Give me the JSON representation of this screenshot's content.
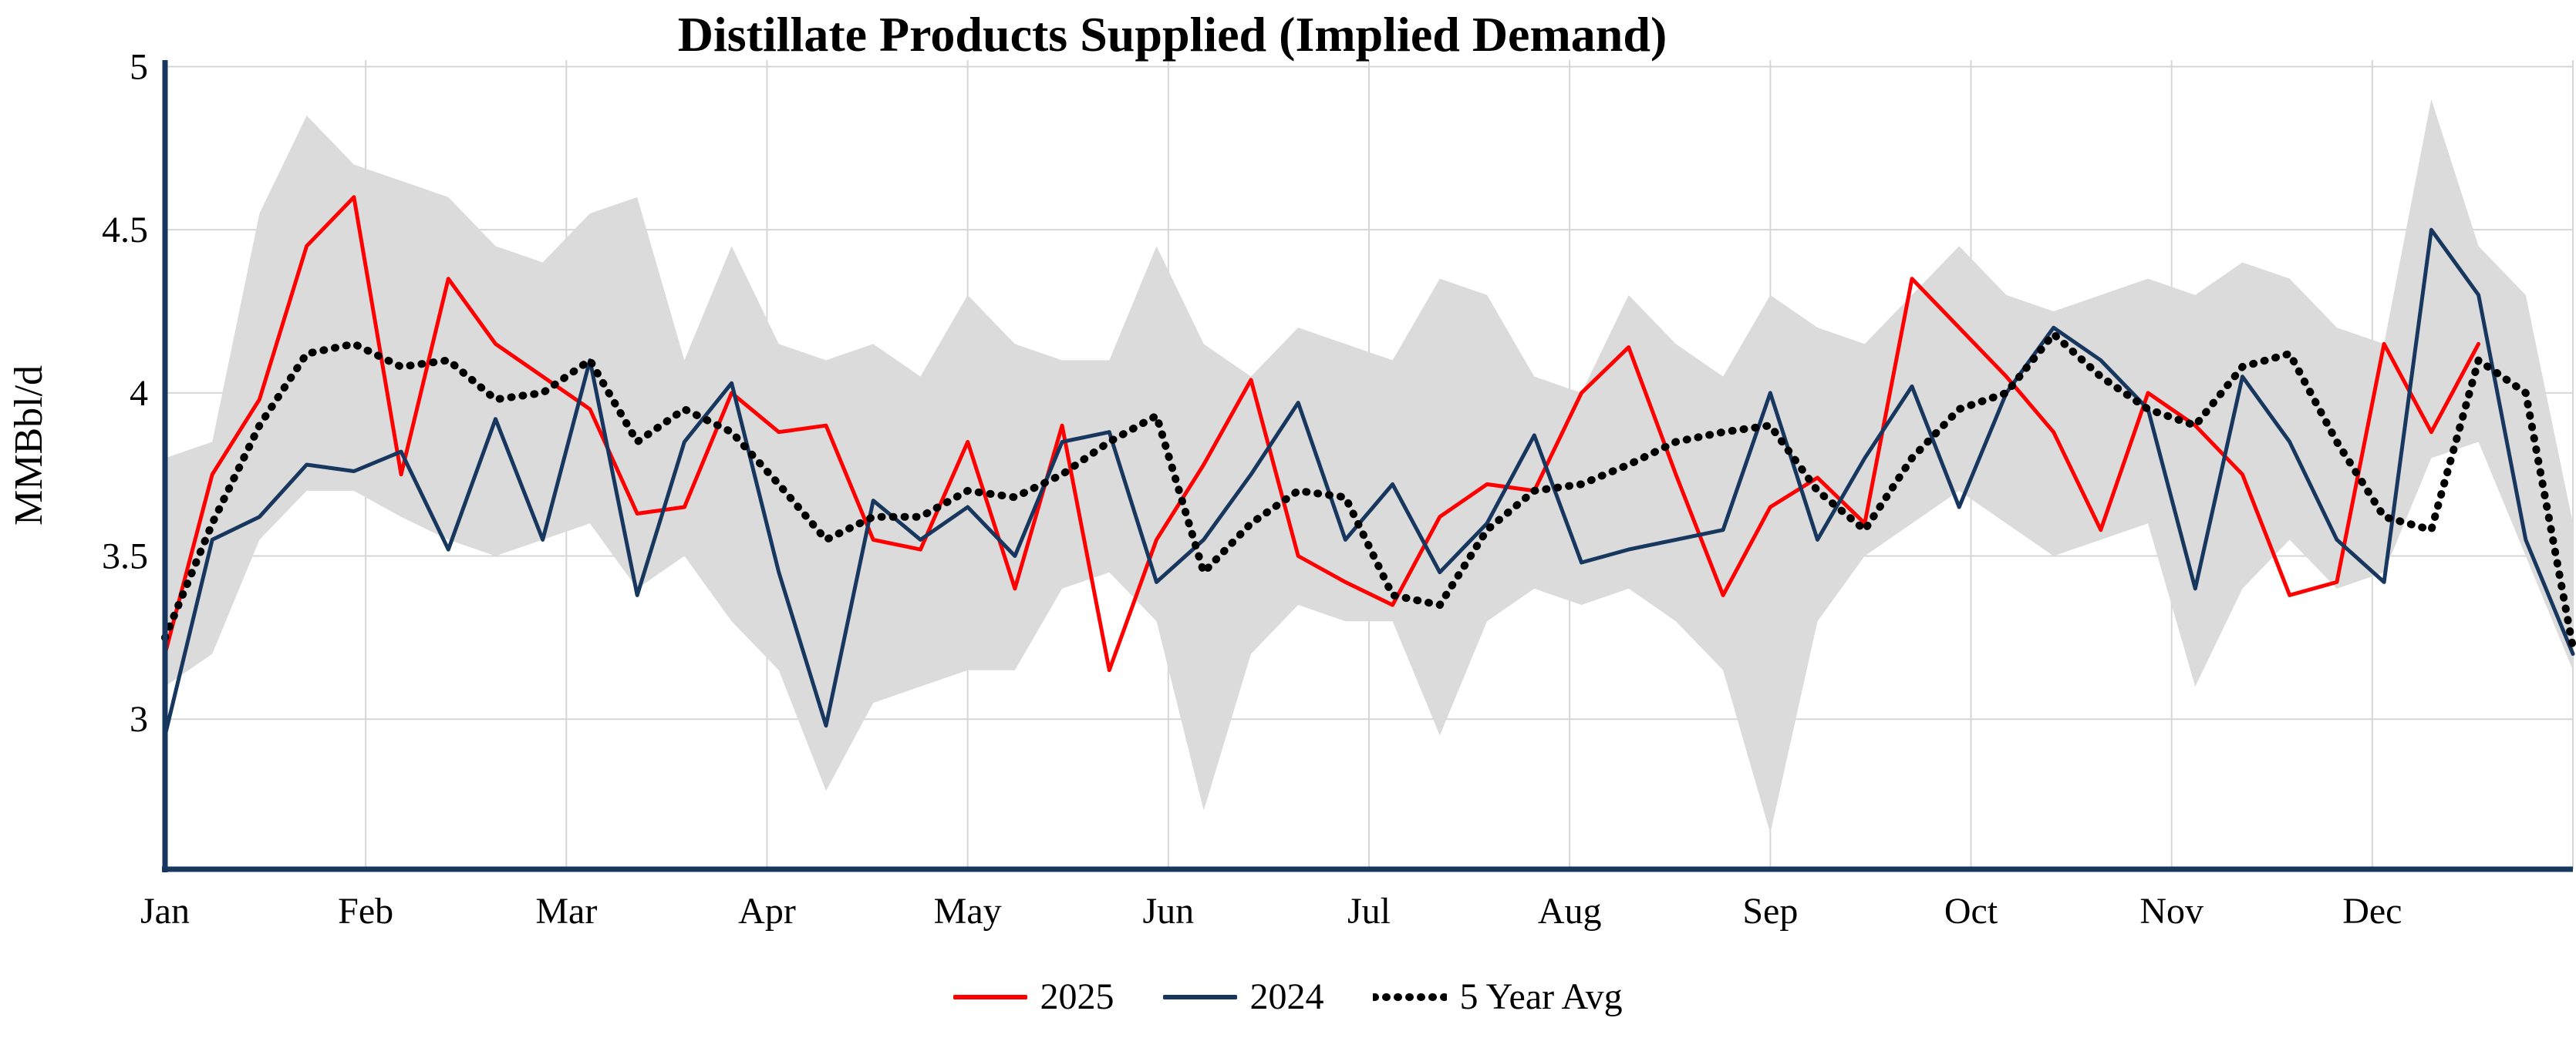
{
  "title": "Distillate Products Supplied (Implied Demand)",
  "y_axis": {
    "label": "MMBbl/d",
    "ticks": [
      "5",
      "4.5",
      "4",
      "3.5",
      "3"
    ],
    "tick_values": [
      5,
      4.5,
      4,
      3.5,
      3
    ]
  },
  "x_axis": {
    "months": [
      "Jan",
      "Feb",
      "Mar",
      "Apr",
      "May",
      "Jun",
      "Jul",
      "Aug",
      "Sep",
      "Oct",
      "Nov",
      "Dec"
    ]
  },
  "legend": [
    {
      "label": "2025",
      "color": "#FF0000",
      "style": "solid"
    },
    {
      "label": "2024",
      "color": "#17375E",
      "style": "solid"
    },
    {
      "label": "5 Year Avg",
      "color": "#000000",
      "style": "dotted"
    }
  ],
  "colors": {
    "series_2025": "#FF0000",
    "series_2024": "#17375E",
    "series_avg": "#000000",
    "band": "#DBDBDB",
    "grid": "#D6D6D6",
    "axis": "#17375E",
    "background": "#FFFFFF"
  },
  "chart_data": {
    "type": "line",
    "title": "Distillate Products Supplied (Implied Demand)",
    "xlabel": "",
    "ylabel": "MMBbl/d",
    "x_unit": "week of year",
    "weeks": 52,
    "ylim": [
      2.54,
      5.02
    ],
    "grid": true,
    "legend_position": "bottom",
    "categories_months": [
      "Jan",
      "Feb",
      "Mar",
      "Apr",
      "May",
      "Jun",
      "Jul",
      "Aug",
      "Sep",
      "Oct",
      "Nov",
      "Dec"
    ],
    "series": [
      {
        "name": "2025",
        "color": "#FF0000",
        "style": "solid",
        "values": [
          3.2,
          3.75,
          3.98,
          4.45,
          4.6,
          3.75,
          4.35,
          4.15,
          4.05,
          3.95,
          3.63,
          3.65,
          4.0,
          3.88,
          3.9,
          3.55,
          3.52,
          3.85,
          3.4,
          3.9,
          3.15,
          3.55,
          3.78,
          4.04,
          3.5,
          3.42,
          3.35,
          3.62,
          3.72,
          3.7,
          4.0,
          4.14,
          3.75,
          3.38,
          3.65,
          3.74,
          3.6,
          4.35,
          4.2,
          4.05,
          3.88,
          3.58,
          4.0,
          3.9,
          3.75,
          3.38,
          3.42,
          4.15,
          3.88,
          4.15,
          null,
          null
        ]
      },
      {
        "name": "2024",
        "color": "#17375E",
        "style": "solid",
        "values": [
          2.95,
          3.55,
          3.62,
          3.78,
          3.76,
          3.82,
          3.52,
          3.92,
          3.55,
          4.1,
          3.38,
          3.85,
          4.03,
          3.45,
          2.98,
          3.67,
          3.55,
          3.65,
          3.5,
          3.85,
          3.88,
          3.42,
          3.55,
          3.75,
          3.97,
          3.55,
          3.72,
          3.45,
          3.6,
          3.87,
          3.48,
          3.52,
          3.55,
          3.58,
          4.0,
          3.55,
          3.8,
          4.02,
          3.65,
          4.0,
          4.2,
          4.1,
          3.95,
          3.4,
          4.05,
          3.85,
          3.55,
          3.42,
          4.5,
          4.3,
          3.55,
          3.2
        ]
      },
      {
        "name": "5 Year Avg",
        "color": "#000000",
        "style": "dotted",
        "values": [
          3.25,
          3.6,
          3.9,
          4.12,
          4.15,
          4.08,
          4.1,
          3.98,
          4.0,
          4.1,
          3.85,
          3.95,
          3.88,
          3.72,
          3.55,
          3.62,
          3.62,
          3.7,
          3.68,
          3.75,
          3.85,
          3.93,
          3.45,
          3.6,
          3.7,
          3.68,
          3.38,
          3.35,
          3.58,
          3.7,
          3.72,
          3.78,
          3.85,
          3.88,
          3.9,
          3.7,
          3.58,
          3.8,
          3.95,
          4.0,
          4.18,
          4.05,
          3.95,
          3.9,
          4.08,
          4.12,
          3.85,
          3.62,
          3.58,
          4.1,
          4.0,
          3.22
        ]
      }
    ],
    "band": {
      "name": "5 Year Range",
      "color": "#DBDBDB",
      "min": [
        3.1,
        3.2,
        3.55,
        3.7,
        3.7,
        3.62,
        3.55,
        3.5,
        3.55,
        3.6,
        3.4,
        3.5,
        3.3,
        3.15,
        2.78,
        3.05,
        3.1,
        3.15,
        3.15,
        3.4,
        3.45,
        3.3,
        2.72,
        3.2,
        3.35,
        3.3,
        3.3,
        2.95,
        3.3,
        3.4,
        3.35,
        3.4,
        3.3,
        3.15,
        2.65,
        3.3,
        3.5,
        3.6,
        3.7,
        3.6,
        3.5,
        3.55,
        3.6,
        3.1,
        3.4,
        3.55,
        3.4,
        3.45,
        3.8,
        3.85,
        3.5,
        3.15
      ],
      "max": [
        3.8,
        3.85,
        4.55,
        4.85,
        4.7,
        4.65,
        4.6,
        4.45,
        4.4,
        4.55,
        4.6,
        4.1,
        4.45,
        4.15,
        4.1,
        4.15,
        4.05,
        4.3,
        4.15,
        4.1,
        4.1,
        4.45,
        4.15,
        4.05,
        4.2,
        4.15,
        4.1,
        4.35,
        4.3,
        4.05,
        4.0,
        4.3,
        4.15,
        4.05,
        4.3,
        4.2,
        4.15,
        4.3,
        4.45,
        4.3,
        4.25,
        4.3,
        4.35,
        4.3,
        4.4,
        4.35,
        4.2,
        4.15,
        4.9,
        4.45,
        4.3,
        3.6
      ]
    }
  }
}
